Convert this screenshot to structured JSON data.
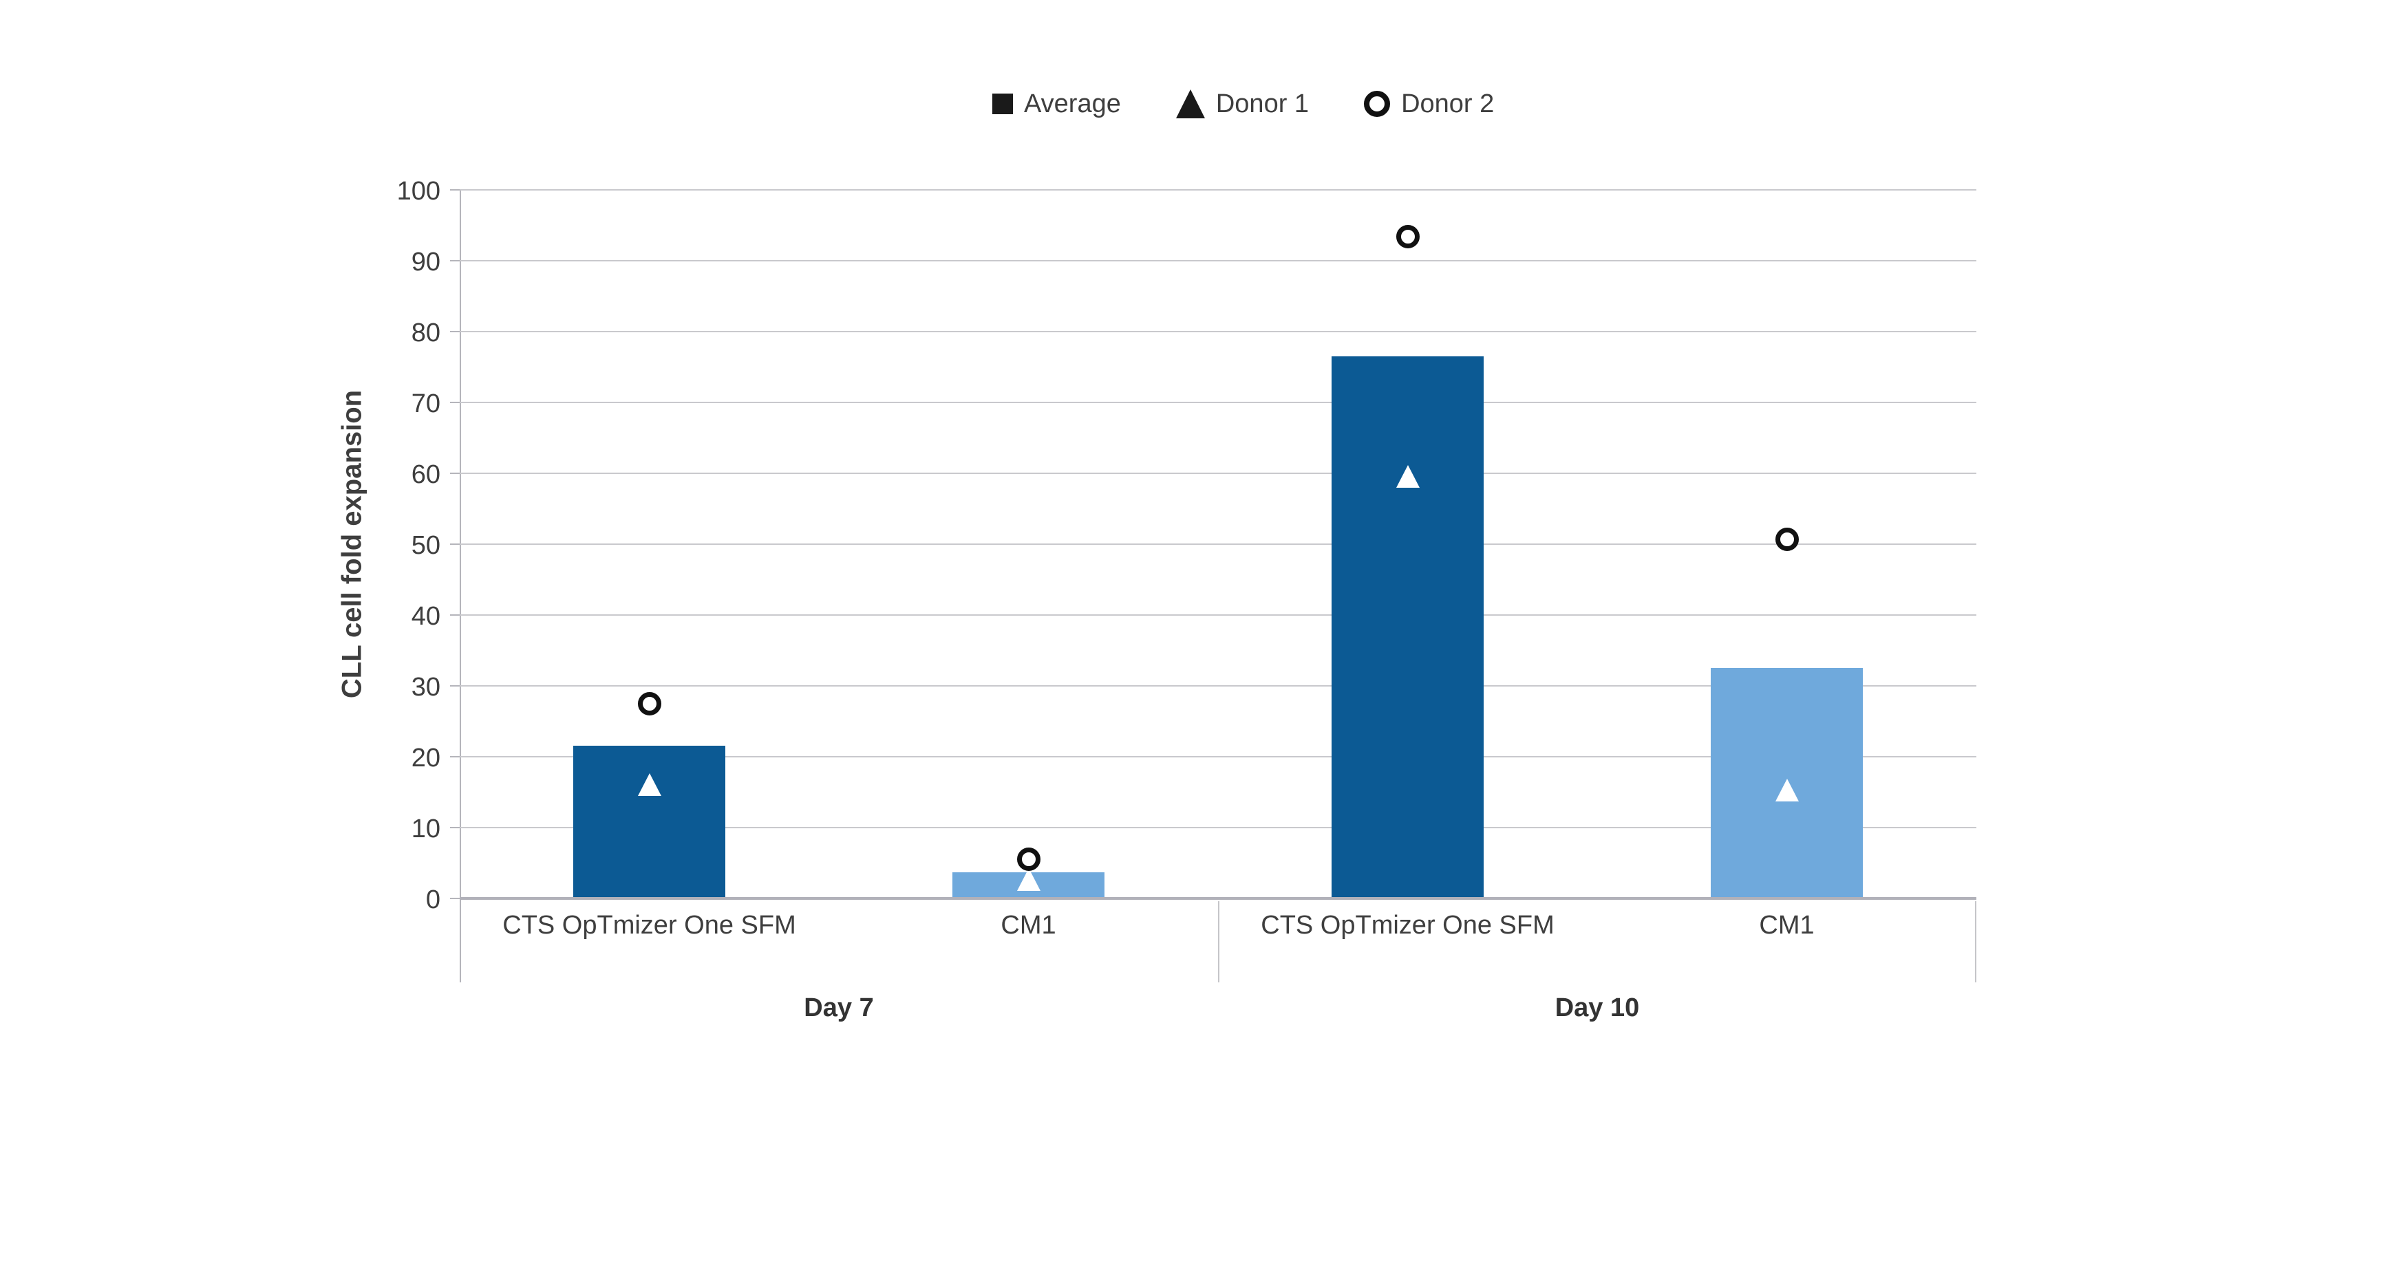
{
  "chart_data": {
    "type": "bar",
    "title": "",
    "ylabel": "CLL cell fold expansion",
    "xlabel": "",
    "ylim": [
      0,
      100
    ],
    "ytick_step": 10,
    "grid": true,
    "legend_position": "top-center",
    "legend": [
      {
        "label": "Average",
        "marker": "filled-square"
      },
      {
        "label": "Donor 1",
        "marker": "filled-triangle"
      },
      {
        "label": "Donor 2",
        "marker": "open-circle"
      }
    ],
    "series_note": "Bars show Average; white triangle overlay = Donor 1; open circle overlay = Donor 2",
    "groups": [
      {
        "label": "Day 7",
        "bars": [
          {
            "category": "CTS OpTmizer One SFM",
            "average": 21.6,
            "donor1": 16.0,
            "donor2": 27.5,
            "color": "#0C5A94"
          },
          {
            "category": "CM1",
            "average": 3.7,
            "donor1": 2.6,
            "donor2": 5.5,
            "color": "#6FA9DC"
          }
        ]
      },
      {
        "label": "Day 10",
        "bars": [
          {
            "category": "CTS OpTmizer One SFM",
            "average": 76.5,
            "donor1": 59.5,
            "donor2": 93.4,
            "color": "#0C5A94"
          },
          {
            "category": "CM1",
            "average": 32.5,
            "donor1": 15.2,
            "donor2": 50.7,
            "color": "#6FA9DC"
          }
        ]
      }
    ]
  },
  "colors": {
    "bar_dark_blue": "#0C5A94",
    "bar_light_blue": "#6FA9DC",
    "gridline": "#C9C9CD",
    "axis_line": "#B5B5BB",
    "baseline": "#B1B1B9",
    "table_border": "#C5C5C9",
    "text": "#3E3E3E",
    "marker_black": "#1A1A1A",
    "marker_white": "#FFFFFF",
    "background": "#FFFFFF"
  }
}
